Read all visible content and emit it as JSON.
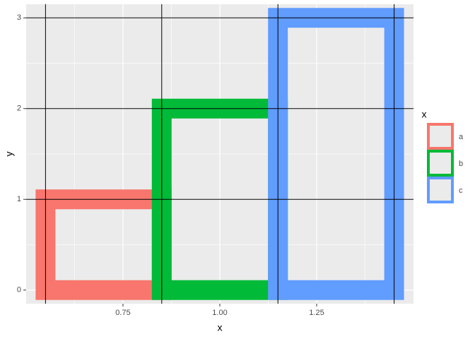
{
  "chart_data": {
    "type": "rect",
    "categories": [
      "a",
      "b",
      "c"
    ],
    "xmin": [
      0.55,
      0.85,
      1.15
    ],
    "xmax": [
      0.85,
      1.15,
      1.45
    ],
    "ymin": [
      0,
      0,
      0
    ],
    "ymax": [
      1,
      2,
      3
    ],
    "colors": [
      "#F8766D",
      "#00BA38",
      "#619CFF"
    ],
    "vlines": [
      0.55,
      0.85,
      1.15,
      1.45
    ],
    "hlines": [
      1,
      2,
      3
    ],
    "xlabel": "x",
    "ylabel": "y",
    "legend_title": "x",
    "xlim": [
      0.5,
      1.5
    ],
    "xticks": [
      0.75,
      {
        "value": 1,
        "label": "1.00"
      },
      1.25
    ],
    "ylim": [
      -0.15,
      3.15
    ],
    "yticks": [
      0,
      1,
      2,
      3
    ],
    "grid": true,
    "legend": "right"
  }
}
